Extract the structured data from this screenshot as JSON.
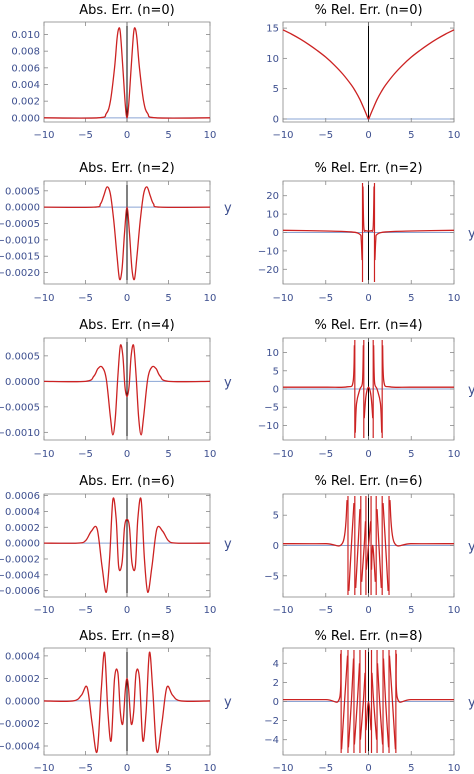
{
  "colors": {
    "curve": "#cc2222",
    "zero_line": "#8aa4d4",
    "axis": "#888888",
    "tick_text": "#3d4f8f",
    "vline": "#000000"
  },
  "chart_data": [
    {
      "type": "line",
      "title": "Abs. Err. (n=0)",
      "n": 0,
      "metric": "abs",
      "xlabel": "",
      "ylabel": "",
      "xlim": [
        -10,
        10
      ],
      "ylim": [
        -0.0005,
        0.0115
      ],
      "xticks": [
        -10,
        -5,
        0,
        5,
        10
      ],
      "xtick_labels": [
        "−10",
        "−5",
        "0",
        "5",
        "10"
      ],
      "yticks": [
        0.0,
        0.002,
        0.004,
        0.006,
        0.008,
        0.01
      ],
      "ytick_labels": [
        "0.000",
        "0.002",
        "0.004",
        "0.006",
        "0.008",
        "0.010"
      ],
      "series": [
        {
          "x": [
            -10,
            -3.5,
            -2.5,
            -2,
            -1.5,
            -1.2,
            -1,
            -0.8,
            -0.5,
            -0.2,
            0,
            0.2,
            0.5,
            0.8,
            1,
            1.2,
            1.5,
            2,
            2.5,
            3.5,
            10
          ],
          "y": [
            0,
            0,
            0.0005,
            0.002,
            0.006,
            0.0095,
            0.0107,
            0.0102,
            0.006,
            0.0015,
            0,
            0.0015,
            0.006,
            0.0102,
            0.0107,
            0.0095,
            0.006,
            0.002,
            0.0005,
            0,
            0
          ]
        }
      ]
    },
    {
      "type": "line",
      "title": "% Rel. Err. (n=0)",
      "n": 0,
      "metric": "rel",
      "xlabel": "",
      "ylabel": "",
      "xlim": [
        -10,
        10
      ],
      "ylim": [
        -0.5,
        16
      ],
      "xticks": [
        -10,
        -5,
        0,
        5,
        10
      ],
      "xtick_labels": [
        "−10",
        "−5",
        "0",
        "5",
        "10"
      ],
      "yticks": [
        0,
        5,
        10,
        15
      ],
      "ytick_labels": [
        "0",
        "5",
        "10",
        "15"
      ],
      "series": [
        {
          "x": [
            -10,
            -9,
            -8,
            -7,
            -6,
            -5,
            -4,
            -3,
            -2,
            -1.5,
            -1,
            -0.5,
            -0.2,
            0,
            0.2,
            0.5,
            1,
            1.5,
            2,
            3,
            4,
            5,
            6,
            7,
            8,
            9,
            10
          ],
          "y": [
            14.7,
            14.0,
            13.2,
            12.3,
            11.3,
            10.2,
            8.9,
            7.4,
            5.6,
            4.5,
            3.2,
            1.6,
            0.6,
            0.0,
            0.6,
            1.6,
            3.2,
            4.5,
            5.6,
            7.4,
            8.9,
            10.2,
            11.3,
            12.3,
            13.2,
            14.0,
            14.7
          ]
        }
      ]
    },
    {
      "type": "line",
      "title": "Abs. Err. (n=2)",
      "n": 2,
      "metric": "abs",
      "xlabel": "y",
      "ylabel": "",
      "xlim": [
        -10,
        10
      ],
      "ylim": [
        -0.00235,
        0.0008
      ],
      "xticks": [
        -10,
        -5,
        0,
        5,
        10
      ],
      "xtick_labels": [
        "−10",
        "−5",
        "0",
        "5",
        "10"
      ],
      "yticks": [
        0.0005,
        0.0,
        -0.0005,
        -0.001,
        -0.0015,
        -0.002
      ],
      "ytick_labels": [
        "0.0005",
        "0.0000",
        "−0.0005",
        "−0.0010",
        "−0.0015",
        "−0.0020"
      ],
      "series": [
        {
          "x": [
            -10,
            -4,
            -3.2,
            -2.8,
            -2.4,
            -2.0,
            -1.6,
            -1.2,
            -0.9,
            -0.6,
            -0.3,
            0,
            0.3,
            0.6,
            0.9,
            1.2,
            1.6,
            2.0,
            2.4,
            2.8,
            3.2,
            4,
            10
          ],
          "y": [
            0,
            0,
            0.0001,
            0.00035,
            0.00062,
            0.0004,
            -0.0004,
            -0.0015,
            -0.0022,
            -0.0019,
            -0.0008,
            0,
            -0.0008,
            -0.0019,
            -0.0022,
            -0.0015,
            -0.0004,
            0.0004,
            0.00062,
            0.00035,
            0.0001,
            0,
            0
          ]
        }
      ]
    },
    {
      "type": "line",
      "title": "% Rel. Err. (n=2)",
      "n": 2,
      "metric": "rel",
      "xlabel": "y",
      "ylabel": "",
      "xlim": [
        -10,
        10
      ],
      "ylim": [
        -28,
        28
      ],
      "xticks": [
        -10,
        -5,
        0,
        5,
        10
      ],
      "xtick_labels": [
        "−10",
        "−5",
        "0",
        "5",
        "10"
      ],
      "yticks": [
        20,
        10,
        0,
        -10,
        -20
      ],
      "ytick_labels": [
        "20",
        "10",
        "0",
        "−10",
        "−20"
      ],
      "poles": [
        -0.7,
        0.7
      ],
      "series": [
        {
          "x": [
            -10,
            -5,
            -2,
            -1,
            -0.85,
            -0.75,
            -0.7,
            -0.65,
            -0.55,
            -0.3,
            0,
            0.3,
            0.55,
            0.65,
            0.7,
            0.75,
            0.85,
            1,
            2,
            5,
            10
          ],
          "y": [
            1.2,
            0.8,
            0.3,
            -1,
            -4,
            -15,
            null,
            25,
            3,
            1,
            0.8,
            1,
            3,
            25,
            null,
            -15,
            -4,
            -1,
            0.3,
            0.8,
            1.2
          ]
        }
      ]
    },
    {
      "type": "line",
      "title": "Abs. Err. (n=4)",
      "n": 4,
      "metric": "abs",
      "xlabel": "y",
      "ylabel": "",
      "xlim": [
        -10,
        10
      ],
      "ylim": [
        -0.00115,
        0.00085
      ],
      "xticks": [
        -10,
        -5,
        0,
        5,
        10
      ],
      "xtick_labels": [
        "−10",
        "−5",
        "0",
        "5",
        "10"
      ],
      "yticks": [
        0.0005,
        0.0,
        -0.0005,
        -0.001
      ],
      "ytick_labels": [
        "0.0005",
        "0.0000",
        "−0.0005",
        "−0.0010"
      ],
      "series": [
        {
          "x": [
            -10,
            -5,
            -4,
            -3.5,
            -3,
            -2.5,
            -2,
            -1.7,
            -1.4,
            -1.1,
            -0.8,
            -0.5,
            -0.25,
            0,
            0.25,
            0.5,
            0.8,
            1.1,
            1.4,
            1.7,
            2,
            2.5,
            3,
            3.5,
            4,
            5,
            10
          ],
          "y": [
            0,
            0,
            0.0001,
            0.00025,
            0.00028,
            5e-05,
            -0.0007,
            -0.00105,
            -0.0007,
            0.0001,
            0.0007,
            0.0005,
            -0.0001,
            -0.0003,
            -0.0001,
            0.0005,
            0.0007,
            0.0001,
            -0.0007,
            -0.00105,
            -0.0007,
            5e-05,
            0.00028,
            0.00025,
            0.0001,
            0,
            0
          ]
        }
      ]
    },
    {
      "type": "line",
      "title": "% Rel. Err. (n=4)",
      "n": 4,
      "metric": "rel",
      "xlabel": "y",
      "ylabel": "",
      "xlim": [
        -10,
        10
      ],
      "ylim": [
        -14,
        14
      ],
      "xticks": [
        -10,
        -5,
        0,
        5,
        10
      ],
      "xtick_labels": [
        "−10",
        "−5",
        "0",
        "5",
        "10"
      ],
      "yticks": [
        10,
        5,
        0,
        -5,
        -10
      ],
      "ytick_labels": [
        "10",
        "5",
        "0",
        "−5",
        "−10"
      ],
      "poles": [
        -1.6,
        -0.55,
        0.55,
        1.6
      ],
      "series": [
        {
          "x": [
            -10,
            -5,
            -2.5,
            -1.8,
            -1.65,
            -1.6,
            -1.55,
            -1.4,
            -1.0,
            -0.7,
            -0.6,
            -0.55,
            -0.5,
            -0.3,
            0,
            0.3,
            0.5,
            0.55,
            0.6,
            0.7,
            1.0,
            1.4,
            1.55,
            1.6,
            1.65,
            1.8,
            2.5,
            5,
            10
          ],
          "y": [
            0.5,
            0.5,
            0.6,
            2,
            12,
            null,
            -12,
            -4,
            0,
            2,
            12,
            null,
            -8,
            -2,
            0.5,
            -2,
            -8,
            null,
            12,
            2,
            0,
            -4,
            -12,
            null,
            12,
            2,
            0.6,
            0.5,
            0.5
          ]
        }
      ]
    },
    {
      "type": "line",
      "title": "Abs. Err. (n=6)",
      "n": 6,
      "metric": "abs",
      "xlabel": "y",
      "ylabel": "",
      "xlim": [
        -10,
        10
      ],
      "ylim": [
        -0.00068,
        0.00062
      ],
      "xticks": [
        -10,
        -5,
        0,
        5,
        10
      ],
      "xtick_labels": [
        "−10",
        "−5",
        "0",
        "5",
        "10"
      ],
      "yticks": [
        0.0006,
        0.0004,
        0.0002,
        0.0,
        -0.0002,
        -0.0004,
        -0.0006
      ],
      "ytick_labels": [
        "0.0006",
        "0.0004",
        "0.0002",
        "0.0000",
        "−0.0002",
        "−0.0004",
        "−0.0006"
      ],
      "series": [
        {
          "x": [
            -10,
            -6,
            -5,
            -4.3,
            -3.6,
            -3.0,
            -2.5,
            -2.1,
            -1.7,
            -1.3,
            -1.0,
            -0.6,
            -0.3,
            0,
            0.3,
            0.6,
            1.0,
            1.3,
            1.7,
            2.1,
            2.5,
            3.0,
            3.6,
            4.3,
            5,
            6,
            10
          ],
          "y": [
            0,
            0,
            3e-05,
            0.00015,
            0.00018,
            -0.0003,
            -0.00062,
            -0.0002,
            0.00055,
            0.0003,
            -0.0003,
            -0.00025,
            0.0002,
            0.0003,
            0.0002,
            -0.00025,
            -0.0003,
            0.0003,
            0.00055,
            -0.0002,
            -0.00062,
            -0.0003,
            0.00018,
            0.00015,
            3e-05,
            0,
            0
          ]
        }
      ]
    },
    {
      "type": "line",
      "title": "% Rel. Err. (n=6)",
      "n": 6,
      "metric": "rel",
      "xlabel": "y",
      "ylabel": "",
      "xlim": [
        -10,
        10
      ],
      "ylim": [
        -8.5,
        8.5
      ],
      "xticks": [
        -10,
        -5,
        0,
        5,
        10
      ],
      "xtick_labels": [
        "−10",
        "−5",
        "0",
        "5",
        "10"
      ],
      "yticks": [
        5,
        0,
        -5
      ],
      "ytick_labels": [
        "5",
        "0",
        "−5"
      ],
      "poles": [
        -2.4,
        -1.6,
        -0.9,
        -0.3,
        0.3,
        0.9,
        1.6,
        2.4
      ],
      "series": [
        {
          "x": [
            -10,
            -5,
            -3,
            -2.5,
            -2.4,
            -2.3,
            -2.0,
            -1.7,
            -1.6,
            -1.5,
            -1.2,
            -1.0,
            -0.9,
            -0.8,
            -0.5,
            -0.35,
            -0.3,
            -0.25,
            0,
            0.25,
            0.3,
            0.35,
            0.5,
            0.8,
            0.9,
            1.0,
            1.2,
            1.5,
            1.6,
            1.7,
            2.0,
            2.3,
            2.4,
            2.5,
            3,
            5,
            10
          ],
          "y": [
            0.3,
            0.3,
            0.5,
            7.5,
            null,
            -7.5,
            0,
            7.0,
            null,
            -7.0,
            0.5,
            6,
            null,
            -6,
            0,
            4,
            null,
            -4,
            0,
            4,
            null,
            -4,
            0,
            -6,
            null,
            6,
            0.5,
            -7.0,
            null,
            7.0,
            0,
            -7.5,
            null,
            7.5,
            0.5,
            0.3,
            0.3
          ]
        }
      ]
    },
    {
      "type": "line",
      "title": "Abs. Err. (n=8)",
      "n": 8,
      "metric": "abs",
      "xlabel": "y",
      "ylabel": "",
      "xlim": [
        -10,
        10
      ],
      "ylim": [
        -0.00048,
        0.00047
      ],
      "xticks": [
        -10,
        -5,
        0,
        5,
        10
      ],
      "xtick_labels": [
        "−10",
        "−5",
        "0",
        "5",
        "10"
      ],
      "yticks": [
        0.0004,
        0.0002,
        0.0,
        -0.0002,
        -0.0004
      ],
      "ytick_labels": [
        "0.0004",
        "0.0002",
        "0.0000",
        "−0.0002",
        "−0.0004"
      ],
      "series": [
        {
          "x": [
            -10,
            -6.5,
            -5.5,
            -4.8,
            -4.2,
            -3.6,
            -3.1,
            -2.7,
            -2.3,
            -1.9,
            -1.5,
            -1.1,
            -0.8,
            -0.5,
            -0.2,
            0,
            0.2,
            0.5,
            0.8,
            1.1,
            1.5,
            1.9,
            2.3,
            2.7,
            3.1,
            3.6,
            4.2,
            4.8,
            5.5,
            6.5,
            10
          ],
          "y": [
            0,
            0,
            5e-05,
            0.00012,
            -0.0002,
            -0.00045,
            0.0001,
            0.00043,
            -0.0001,
            -0.00035,
            0.0002,
            0.00025,
            -0.0001,
            -0.0002,
            0.0001,
            0.0002,
            0.0001,
            -0.0002,
            -0.0001,
            0.00025,
            0.0002,
            -0.00035,
            -0.0001,
            0.00043,
            0.0001,
            -0.00045,
            -0.0002,
            0.00012,
            5e-05,
            0,
            0
          ]
        }
      ]
    },
    {
      "type": "line",
      "title": "% Rel. Err. (n=8)",
      "n": 8,
      "metric": "rel",
      "xlabel": "y",
      "ylabel": "",
      "xlim": [
        -10,
        10
      ],
      "ylim": [
        -5.6,
        5.6
      ],
      "xticks": [
        -10,
        -5,
        0,
        5,
        10
      ],
      "xtick_labels": [
        "−10",
        "−5",
        "0",
        "5",
        "10"
      ],
      "yticks": [
        4,
        2,
        0,
        -2,
        -4
      ],
      "ytick_labels": [
        "4",
        "2",
        "0",
        "−2",
        "−4"
      ],
      "poles": [
        -3.2,
        -2.4,
        -1.7,
        -1.0,
        -0.35,
        0.35,
        1.0,
        1.7,
        2.4,
        3.2
      ],
      "series": [
        {
          "x": [
            -10,
            -5,
            -3.4,
            -3.25,
            -3.2,
            -3.15,
            -2.8,
            -2.45,
            -2.4,
            -2.35,
            -2.0,
            -1.75,
            -1.7,
            -1.65,
            -1.3,
            -1.05,
            -1.0,
            -0.95,
            -0.6,
            -0.4,
            -0.35,
            -0.3,
            0,
            0.3,
            0.35,
            0.4,
            0.6,
            0.95,
            1.0,
            1.05,
            1.3,
            1.65,
            1.7,
            1.75,
            2.0,
            2.35,
            2.4,
            2.45,
            2.8,
            3.15,
            3.2,
            3.25,
            3.4,
            5,
            10
          ],
          "y": [
            0.2,
            0.2,
            0.3,
            5.0,
            null,
            -5.0,
            0,
            4.8,
            null,
            -4.8,
            0,
            4.5,
            null,
            -4.5,
            0,
            4.0,
            null,
            -4.0,
            0,
            3.0,
            null,
            -3.0,
            0,
            -3.0,
            null,
            3.0,
            0,
            -4.0,
            null,
            4.0,
            0,
            -4.5,
            null,
            4.5,
            0,
            -4.8,
            null,
            4.8,
            0,
            -5.0,
            null,
            5.0,
            0.3,
            0.2,
            0.2
          ]
        }
      ]
    }
  ]
}
